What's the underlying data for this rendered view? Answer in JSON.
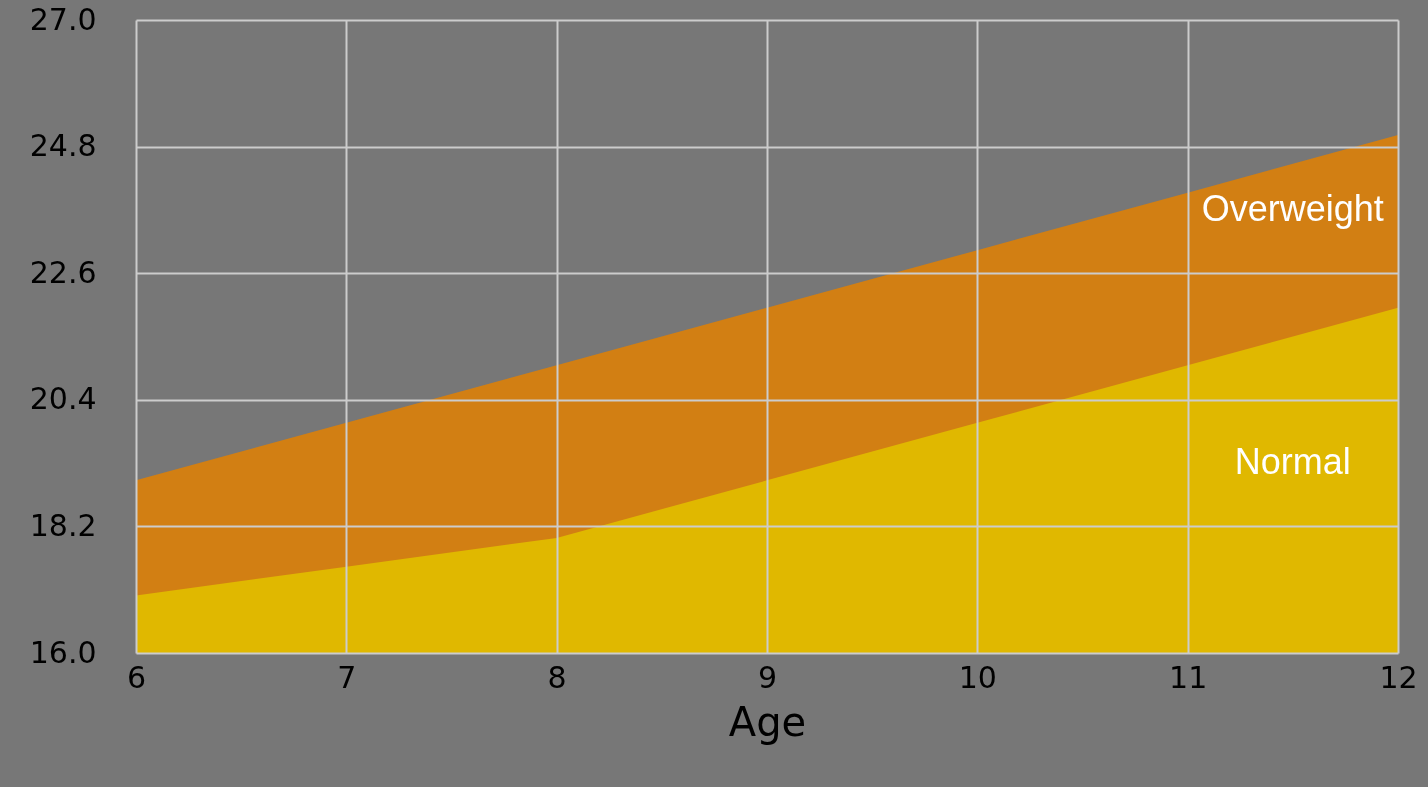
{
  "chart_data": {
    "type": "area",
    "xlabel": "Age",
    "x": [
      6,
      7,
      8,
      9,
      10,
      11,
      12
    ],
    "series": [
      {
        "name": "Overweight",
        "color": "#d27f13",
        "values": [
          19.0,
          20.0,
          21.0,
          22.0,
          23.0,
          24.0,
          25.0
        ]
      },
      {
        "name": "Normal",
        "color": "#e0b800",
        "values": [
          17.0,
          17.5,
          18.0,
          19.0,
          20.0,
          21.0,
          22.0
        ]
      }
    ],
    "xlim": [
      6,
      12
    ],
    "xticks": [
      {
        "value": 6,
        "label": "6"
      },
      {
        "value": 7,
        "label": "7"
      },
      {
        "value": 8,
        "label": "8"
      },
      {
        "value": 9,
        "label": "9"
      },
      {
        "value": 10,
        "label": "10"
      },
      {
        "value": 11,
        "label": "11"
      },
      {
        "value": 12,
        "label": "12"
      }
    ],
    "ylim": [
      16.0,
      27.0
    ],
    "yticks": [
      {
        "value": 16.0,
        "label": "16.0"
      },
      18.2,
      20.4,
      22.6,
      24.8,
      {
        "value": 27.0,
        "label": "27.0"
      }
    ],
    "grid": true,
    "legend": false
  }
}
